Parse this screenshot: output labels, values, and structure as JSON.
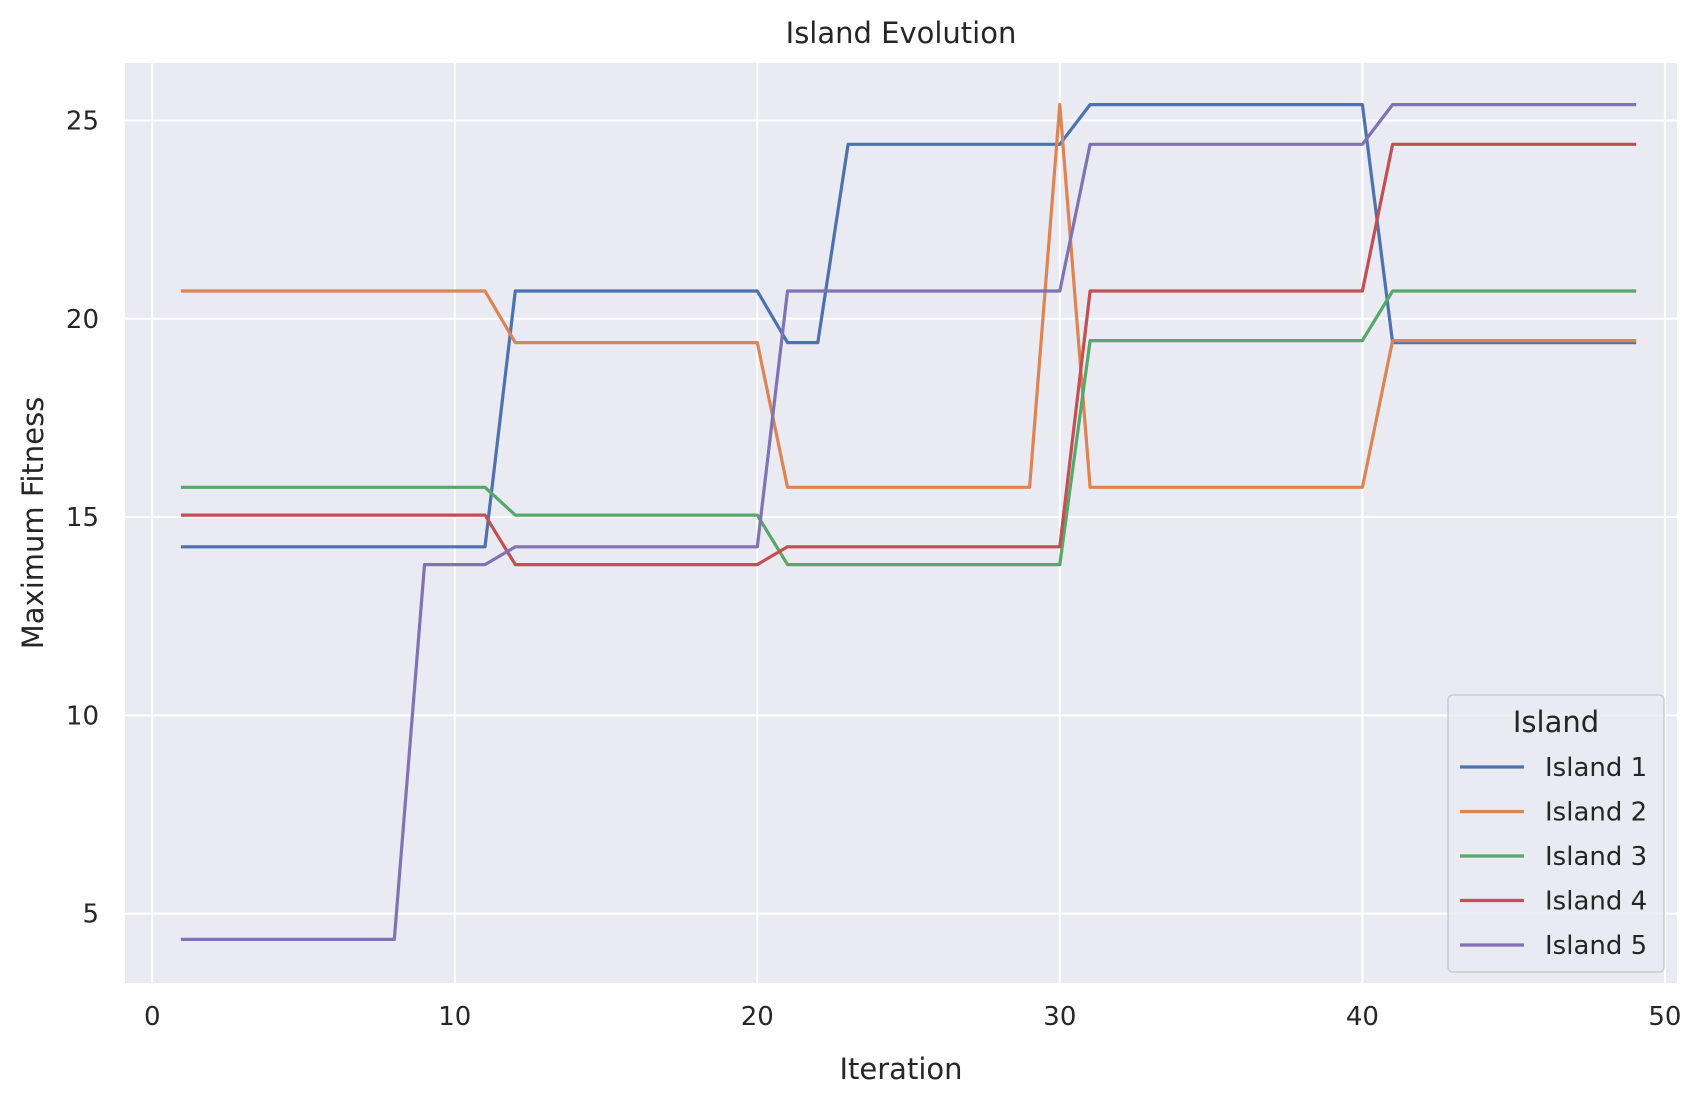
{
  "chart_data": {
    "type": "line",
    "title": "Island Evolution",
    "xlabel": "Iteration",
    "ylabel": "Maximum Fitness",
    "xlim": [
      -0.9,
      50.4
    ],
    "ylim": [
      3.25,
      26.45
    ],
    "xticks": [
      0,
      10,
      20,
      30,
      40,
      50
    ],
    "yticks": [
      5,
      10,
      15,
      20,
      25
    ],
    "grid": true,
    "background": "#eaeaf2",
    "legend": {
      "title": "Island",
      "position": "bottom-right"
    },
    "series": [
      {
        "name": "Island 1",
        "color": "#4c72b0",
        "points": [
          [
            1,
            14.25
          ],
          [
            11,
            14.25
          ],
          [
            12,
            20.7
          ],
          [
            20,
            20.7
          ],
          [
            21,
            19.4
          ],
          [
            22,
            19.4
          ],
          [
            23,
            24.4
          ],
          [
            30,
            24.4
          ],
          [
            31,
            25.4
          ],
          [
            40,
            25.4
          ],
          [
            41,
            19.4
          ],
          [
            49,
            19.4
          ]
        ]
      },
      {
        "name": "Island 2",
        "color": "#dd8452",
        "points": [
          [
            1,
            20.7
          ],
          [
            11,
            20.7
          ],
          [
            12,
            19.4
          ],
          [
            20,
            19.4
          ],
          [
            21,
            15.75
          ],
          [
            29,
            15.75
          ],
          [
            30,
            25.4
          ],
          [
            31,
            15.75
          ],
          [
            40,
            15.75
          ],
          [
            41,
            19.45
          ],
          [
            49,
            19.45
          ]
        ]
      },
      {
        "name": "Island 3",
        "color": "#55a868",
        "points": [
          [
            1,
            15.75
          ],
          [
            11,
            15.75
          ],
          [
            12,
            15.05
          ],
          [
            20,
            15.05
          ],
          [
            21,
            13.8
          ],
          [
            30,
            13.8
          ],
          [
            31,
            19.45
          ],
          [
            40,
            19.45
          ],
          [
            41,
            20.7
          ],
          [
            49,
            20.7
          ]
        ]
      },
      {
        "name": "Island 4",
        "color": "#c44e52",
        "points": [
          [
            1,
            15.05
          ],
          [
            11,
            15.05
          ],
          [
            12,
            13.8
          ],
          [
            20,
            13.8
          ],
          [
            21,
            14.25
          ],
          [
            30,
            14.25
          ],
          [
            31,
            20.7
          ],
          [
            40,
            20.7
          ],
          [
            41,
            24.4
          ],
          [
            49,
            24.4
          ]
        ]
      },
      {
        "name": "Island 5",
        "color": "#8172b3",
        "points": [
          [
            1,
            4.35
          ],
          [
            8,
            4.35
          ],
          [
            9,
            13.8
          ],
          [
            11,
            13.8
          ],
          [
            12,
            14.25
          ],
          [
            20,
            14.25
          ],
          [
            21,
            20.7
          ],
          [
            30,
            20.7
          ],
          [
            31,
            24.4
          ],
          [
            40,
            24.4
          ],
          [
            41,
            25.4
          ],
          [
            49,
            25.4
          ]
        ]
      }
    ]
  }
}
